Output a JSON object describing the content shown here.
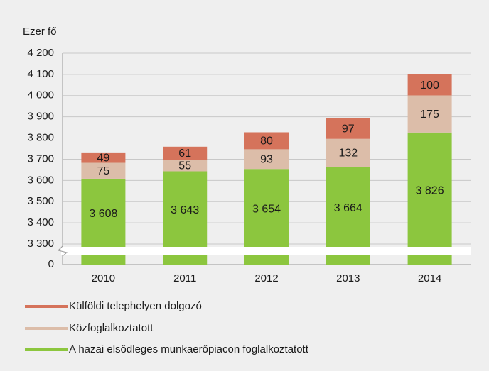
{
  "chart_data": {
    "type": "bar",
    "stacked": true,
    "y_axis_break": true,
    "ylabel": "Ezer fő",
    "categories": [
      "2010",
      "2011",
      "2012",
      "2013",
      "2014"
    ],
    "series": [
      {
        "name": "A hazai elsődleges munkaerőpiacon foglalkoztatott",
        "color": "#8cc63e",
        "values": [
          3608,
          3643,
          3654,
          3664,
          3826
        ],
        "value_labels": [
          "3 608",
          "3 643",
          "3 654",
          "3 664",
          "3 826"
        ]
      },
      {
        "name": "Közfoglalkoztatott",
        "color": "#dcbda9",
        "values": [
          75,
          55,
          93,
          132,
          175
        ]
      },
      {
        "name": "Külföldi telephelyen dolgozó",
        "color": "#d5735b",
        "values": [
          49,
          61,
          80,
          97,
          100
        ]
      }
    ],
    "ylim": [
      0,
      4200
    ],
    "yticks": [
      0,
      {
        "value": 3300,
        "label": "3 300"
      },
      {
        "value": 3400,
        "label": "3 400"
      },
      {
        "value": 3500,
        "label": "3 500"
      },
      {
        "value": 3600,
        "label": "3 600"
      },
      {
        "value": 3700,
        "label": "3 700"
      },
      {
        "value": 3800,
        "label": "3 800"
      },
      {
        "value": 3900,
        "label": "3 900"
      },
      {
        "value": 4000,
        "label": "4 000"
      },
      {
        "value": 4100,
        "label": "4 100"
      },
      {
        "value": 4200,
        "label": "4 200"
      }
    ],
    "grid": true
  }
}
